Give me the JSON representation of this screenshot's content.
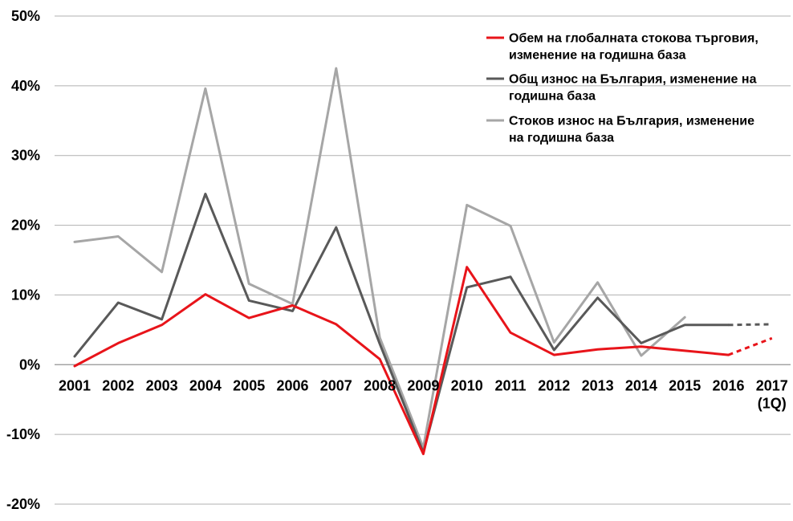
{
  "chart_data": {
    "type": "line",
    "x": [
      "2001",
      "2002",
      "2003",
      "2004",
      "2005",
      "2006",
      "2007",
      "2008",
      "2009",
      "2010",
      "2011",
      "2012",
      "2013",
      "2014",
      "2015",
      "2016",
      "2017 (1Q)"
    ],
    "x_tick_lines": [
      [
        "2001"
      ],
      [
        "2002"
      ],
      [
        "2003"
      ],
      [
        "2004"
      ],
      [
        "2005"
      ],
      [
        "2006"
      ],
      [
        "2007"
      ],
      [
        "2008"
      ],
      [
        "2009"
      ],
      [
        "2010"
      ],
      [
        "2011"
      ],
      [
        "2012"
      ],
      [
        "2013"
      ],
      [
        "2014"
      ],
      [
        "2015"
      ],
      [
        "2016"
      ],
      [
        "2017",
        "(1Q)"
      ]
    ],
    "ylim": [
      -20,
      50
    ],
    "y_ticks": [
      -20,
      -10,
      0,
      10,
      20,
      30,
      40,
      50
    ],
    "y_tick_labels": [
      "-20%",
      "-10%",
      "0%",
      "10%",
      "20%",
      "30%",
      "40%",
      "50%"
    ],
    "grid": true,
    "legend_position": "top-right",
    "series": [
      {
        "name": "Обем на глобалната стокова търговия, изменение на годишна база",
        "legend_lines": [
          "Обем на глобалната стокова търговия,",
          "изменение на годишна база"
        ],
        "color": "#e8141a",
        "values": [
          -0.2,
          3.1,
          5.7,
          10.1,
          6.7,
          8.5,
          5.8,
          0.8,
          -12.8,
          14.0,
          4.6,
          1.4,
          2.2,
          2.6,
          2.0,
          1.4,
          3.8
        ],
        "dashed_from_index": 15
      },
      {
        "name": "Общ износ на България, изменение на годишна база",
        "legend_lines": [
          "Общ износ на България, изменение на",
          "годишна база"
        ],
        "color": "#595959",
        "values": [
          1.2,
          8.9,
          6.5,
          24.5,
          9.2,
          7.7,
          19.7,
          3.0,
          -12.6,
          11.1,
          12.6,
          2.1,
          9.6,
          3.1,
          5.7,
          5.7,
          5.8
        ],
        "dashed_from_index": 15
      },
      {
        "name": "Стоков износ на България, изменение на годишна база",
        "legend_lines": [
          "Стоков износ на България, изменение",
          "на годишна база"
        ],
        "color": "#a6a6a6",
        "values": [
          17.6,
          18.4,
          13.3,
          39.6,
          11.6,
          8.7,
          42.5,
          3.9,
          -11.9,
          22.9,
          19.9,
          3.2,
          11.8,
          1.3,
          6.8,
          null,
          null
        ],
        "dashed_from_index": null
      }
    ]
  }
}
